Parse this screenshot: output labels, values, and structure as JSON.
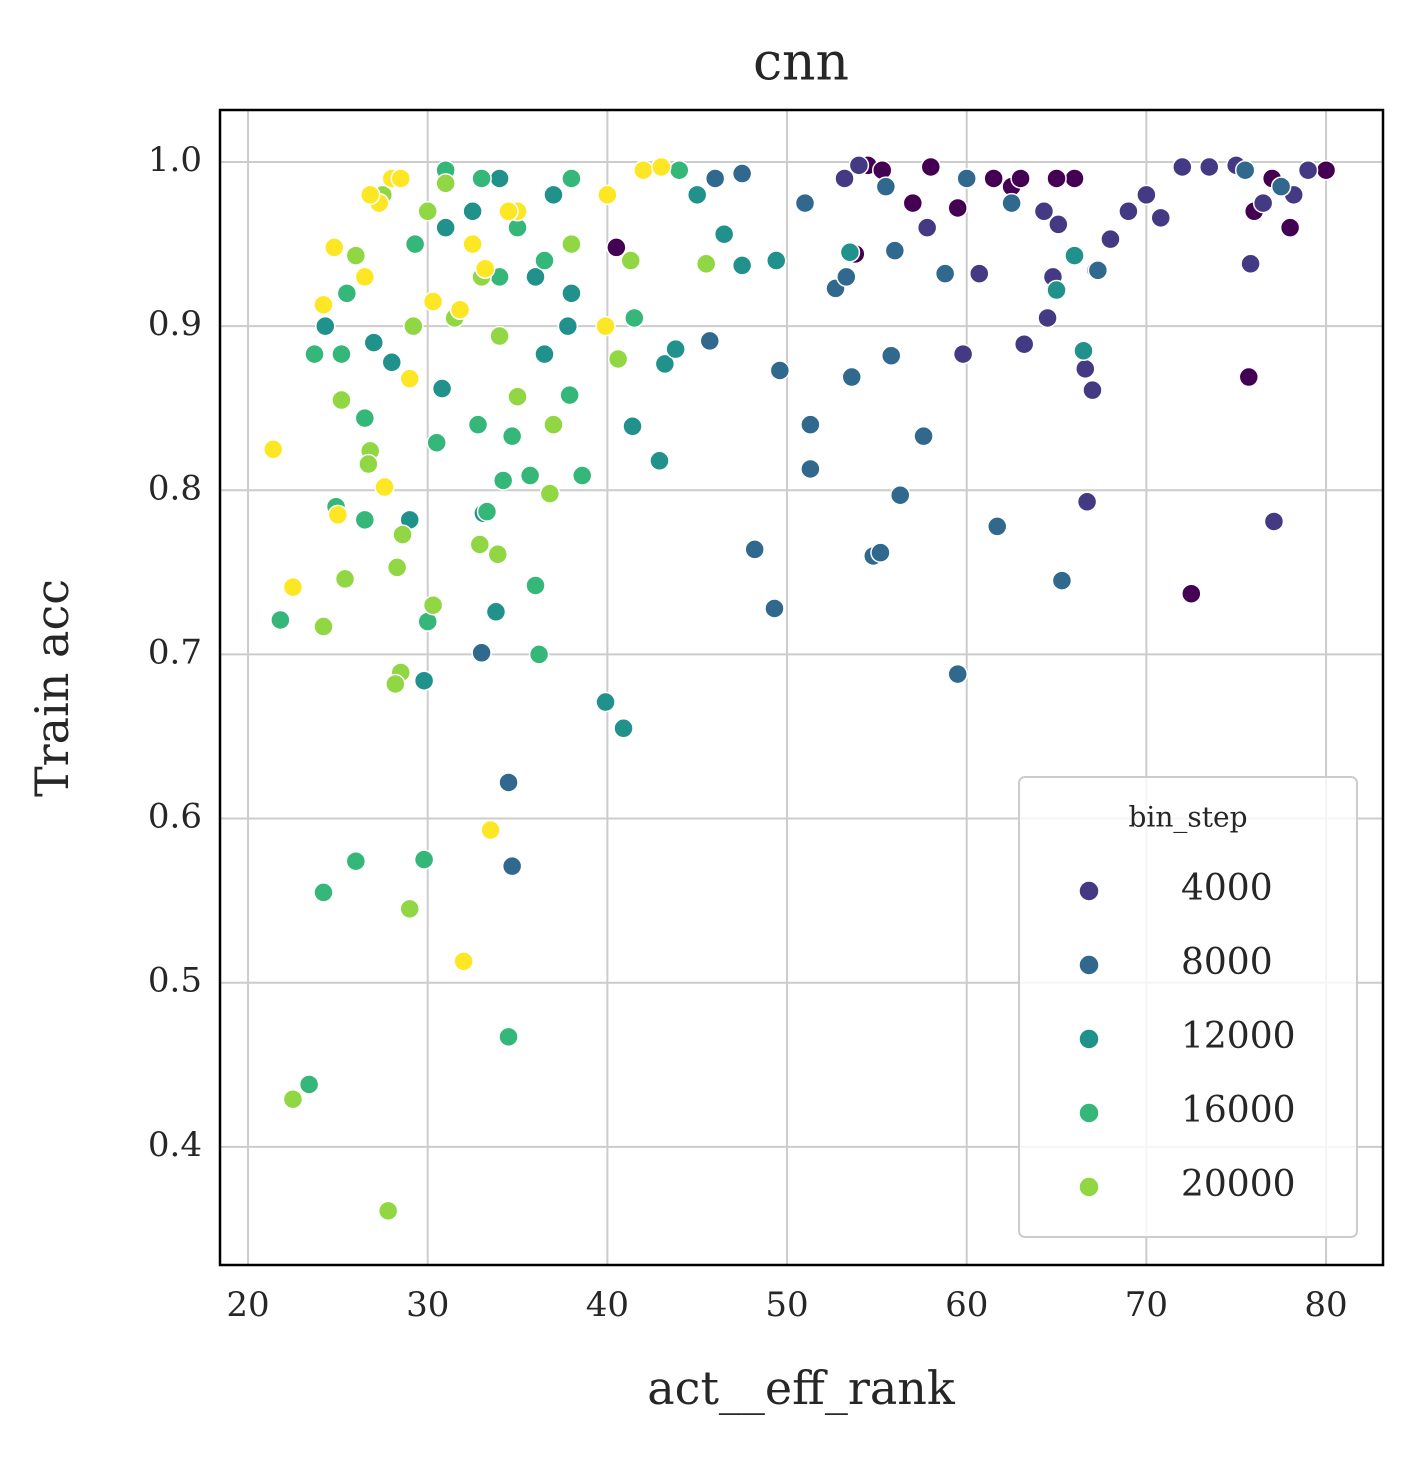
{
  "chart_data": {
    "type": "scatter",
    "title": "cnn",
    "x_label": "act__eff_rank",
    "y_label": "Train acc",
    "legend_title": "bin_step",
    "legend_position": "lower right",
    "grid": true,
    "xlim": [
      18.44,
      83.17
    ],
    "ylim": [
      0.328,
      1.0317
    ],
    "xticks": [
      20,
      30,
      40,
      50,
      60,
      70,
      80
    ],
    "yticks": [
      0.4,
      0.5,
      0.6,
      0.7,
      0.8,
      0.9,
      {
        "value": 1,
        "label": "1.0"
      }
    ],
    "series": [
      {
        "color": "#440154",
        "x": [
          54.5,
          55.3,
          57,
          59.5,
          61.5,
          62.5,
          66,
          72.5,
          75.7,
          76,
          77,
          78,
          65,
          80,
          63,
          58,
          40.5,
          53.8
        ],
        "values": [
          0.998,
          0.995,
          0.975,
          0.972,
          0.99,
          0.985,
          0.99,
          0.737,
          0.869,
          0.97,
          0.99,
          0.96,
          0.99,
          0.995,
          0.99,
          0.997,
          0.948,
          0.944
        ]
      },
      {
        "name": "4000",
        "color": "#443983",
        "x": [
          54,
          57.8,
          59.8,
          60.7,
          63.2,
          64.5,
          64.8,
          65.1,
          66.6,
          67,
          67.2,
          68,
          69,
          70,
          70.8,
          72,
          73.5,
          75,
          75.8,
          76.5,
          77.1,
          78.2,
          79,
          64.3,
          53.2,
          66.7
        ],
        "values": [
          0.998,
          0.96,
          0.883,
          0.932,
          0.889,
          0.905,
          0.93,
          0.962,
          0.874,
          0.861,
          0.934,
          0.953,
          0.97,
          0.98,
          0.966,
          0.997,
          0.997,
          0.998,
          0.938,
          0.975,
          0.781,
          0.98,
          0.995,
          0.97,
          0.99,
          0.793
        ]
      },
      {
        "name": "8000",
        "color": "#31688e",
        "x": [
          33,
          34.5,
          34.7,
          45.7,
          48.2,
          49.3,
          49.6,
          51.3,
          51.3,
          52.7,
          53.6,
          54.8,
          55.2,
          55.8,
          56.3,
          57.6,
          59.5,
          61.7,
          65.3,
          53.3,
          56,
          58.8,
          46,
          62.5,
          67.3,
          51,
          47.5,
          55.5,
          60,
          75.5,
          77.5
        ],
        "values": [
          0.701,
          0.622,
          0.571,
          0.891,
          0.764,
          0.728,
          0.873,
          0.84,
          0.813,
          0.923,
          0.869,
          0.76,
          0.762,
          0.882,
          0.797,
          0.833,
          0.688,
          0.778,
          0.745,
          0.93,
          0.946,
          0.932,
          0.99,
          0.975,
          0.934,
          0.975,
          0.993,
          0.985,
          0.99,
          0.995,
          0.985
        ]
      },
      {
        "name": "12000",
        "color": "#21918c",
        "x": [
          24.3,
          27,
          28,
          29,
          29.8,
          30.8,
          33.1,
          33.8,
          36.5,
          37.8,
          41.4,
          42.9,
          43.2,
          43.8,
          46.5,
          47.5,
          49.4,
          53.5,
          65,
          66,
          66.5,
          39.9,
          40.9,
          34,
          37,
          45,
          36,
          38,
          31,
          32.5
        ],
        "values": [
          0.9,
          0.89,
          0.878,
          0.782,
          0.684,
          0.862,
          0.786,
          0.726,
          0.883,
          0.9,
          0.839,
          0.818,
          0.877,
          0.886,
          0.956,
          0.937,
          0.94,
          0.945,
          0.922,
          0.943,
          0.885,
          0.671,
          0.655,
          0.99,
          0.98,
          0.98,
          0.93,
          0.92,
          0.96,
          0.97
        ]
      },
      {
        "name": "16000",
        "color": "#35b779",
        "x": [
          23.7,
          25.2,
          25.5,
          26.5,
          26.5,
          24.9,
          26,
          29.8,
          30.5,
          32.8,
          33.3,
          34.2,
          34.7,
          34.5,
          35.7,
          36,
          37.9,
          38.6,
          24.2,
          21.8,
          35,
          36.5,
          31,
          33,
          38,
          30,
          41.5,
          44,
          36.2,
          29.3,
          34,
          23.4
        ],
        "values": [
          0.883,
          0.883,
          0.92,
          0.844,
          0.782,
          0.79,
          0.574,
          0.575,
          0.829,
          0.84,
          0.787,
          0.806,
          0.833,
          0.467,
          0.809,
          0.742,
          0.858,
          0.809,
          0.555,
          0.721,
          0.96,
          0.94,
          0.995,
          0.99,
          0.99,
          0.72,
          0.905,
          0.995,
          0.7,
          0.95,
          0.93,
          0.438
        ]
      },
      {
        "name": "20000",
        "color": "#90d743",
        "x": [
          25.2,
          26.8,
          26.7,
          28.3,
          28.6,
          30.3,
          31.5,
          32.9,
          33.9,
          34,
          40.6,
          41.3,
          25.4,
          28.5,
          29,
          26,
          27.5,
          30,
          45.5,
          36.8,
          35,
          24.2,
          37,
          28.2,
          33,
          38,
          42,
          31,
          29.2,
          27.8,
          22.5
        ],
        "values": [
          0.855,
          0.824,
          0.816,
          0.753,
          0.773,
          0.73,
          0.905,
          0.767,
          0.761,
          0.894,
          0.88,
          0.94,
          0.746,
          0.689,
          0.545,
          0.943,
          0.98,
          0.97,
          0.938,
          0.798,
          0.857,
          0.717,
          0.84,
          0.682,
          0.93,
          0.95,
          0.995,
          0.987,
          0.9,
          0.361,
          0.429
        ]
      },
      {
        "color": "#fde725",
        "x": [
          21.4,
          22.5,
          24.2,
          24.8,
          25,
          27.6,
          29,
          32,
          33.5,
          31.8,
          33.2,
          39.9,
          30.3,
          28,
          27.3,
          26.5,
          26.8,
          35,
          40,
          42,
          43,
          28.5,
          32.5,
          34.5
        ],
        "values": [
          0.825,
          0.741,
          0.913,
          0.948,
          0.785,
          0.802,
          0.868,
          0.513,
          0.593,
          0.91,
          0.935,
          0.9,
          0.915,
          0.99,
          0.975,
          0.93,
          0.98,
          0.97,
          0.98,
          0.995,
          0.997,
          0.99,
          0.95,
          0.97
        ]
      }
    ]
  }
}
